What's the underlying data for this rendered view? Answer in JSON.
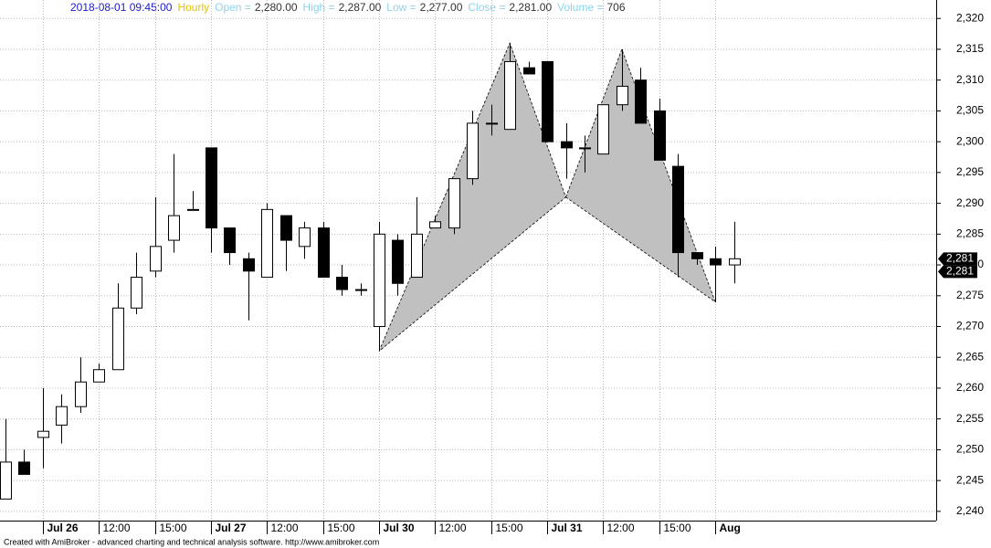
{
  "header": {
    "datetime": "2018-08-01 09:45:00",
    "interval": "Hourly",
    "fields": [
      {
        "label": "Open =",
        "value": "2,280.00"
      },
      {
        "label": "High =",
        "value": "2,287.00"
      },
      {
        "label": "Low =",
        "value": "2,277.00"
      },
      {
        "label": "Close =",
        "value": "2,281.00"
      },
      {
        "label": "Volume =",
        "value": "706"
      }
    ]
  },
  "chart_data": {
    "type": "candlestick",
    "categories": [
      null,
      null,
      "Jul 26",
      null,
      null,
      "12:00",
      null,
      null,
      "15:00",
      null,
      null,
      "Jul 27",
      null,
      null,
      "12:00",
      null,
      null,
      "15:00",
      null,
      null,
      "Jul 30",
      null,
      null,
      "12:00",
      null,
      null,
      "15:00",
      null,
      null,
      "Jul 31",
      null,
      null,
      "12:00",
      null,
      null,
      "15:00",
      null,
      null,
      "Aug",
      null
    ],
    "open": [
      2242,
      2248,
      2252,
      2254,
      2257,
      2261,
      2263,
      2273,
      2279,
      2284,
      2289,
      2299,
      2286,
      2281,
      2278,
      2288,
      2283,
      2286,
      2278,
      2276,
      2270,
      2284,
      2278,
      2286,
      2286,
      2294,
      2303,
      2302,
      2312,
      2313,
      2300,
      2299,
      2298,
      2306,
      2310,
      2305,
      2296,
      2282,
      2281,
      2280
    ],
    "high": [
      2255,
      2250,
      2260,
      2259,
      2265,
      2264,
      2277,
      2282,
      2291,
      2298,
      2292,
      2299,
      2286,
      2282,
      2290,
      2288,
      2287,
      2287,
      2280,
      2277,
      2287,
      2285,
      2291,
      2288,
      2294,
      2305,
      2306,
      2316,
      2313,
      2313,
      2303,
      2301,
      2306,
      2315,
      2312,
      2307,
      2298,
      2282,
      2283,
      2287
    ],
    "low": [
      2242,
      2246,
      2247,
      2251,
      2256,
      2261,
      2263,
      2272,
      2278,
      2282,
      2289,
      2282,
      2280,
      2271,
      2278,
      2279,
      2281,
      2278,
      2275,
      2275,
      2266,
      2275,
      2278,
      2286,
      2285,
      2293,
      2301,
      2302,
      2311,
      2300,
      2294,
      2295,
      2298,
      2305,
      2303,
      2297,
      2278,
      2280,
      2274,
      2277
    ],
    "close": [
      2248,
      2246,
      2253,
      2257,
      2261,
      2263,
      2273,
      2278,
      2283,
      2288,
      2289,
      2286,
      2282,
      2279,
      2289,
      2284,
      2286,
      2278,
      2276,
      2276,
      2285,
      2277,
      2285,
      2287,
      2294,
      2303,
      2303,
      2313,
      2311,
      2300,
      2299,
      2299,
      2306,
      2309,
      2303,
      2297,
      2282,
      2281,
      2280,
      2281
    ],
    "pattern": {
      "x": [
        20,
        27,
        30,
        33,
        38
      ],
      "values": [
        2266,
        2316,
        2291,
        2315,
        2274
      ]
    },
    "ylim": [
      2238.5,
      2323
    ],
    "yticks": [
      {
        "value": 2240,
        "label": "2,240"
      },
      {
        "value": 2245,
        "label": "2,245"
      },
      {
        "value": 2250,
        "label": "2,250"
      },
      {
        "value": 2255,
        "label": "2,255"
      },
      {
        "value": 2260,
        "label": "2,260"
      },
      {
        "value": 2265,
        "label": "2,265"
      },
      {
        "value": 2270,
        "label": "2,270"
      },
      {
        "value": 2275,
        "label": "2,275"
      },
      {
        "value": 2280,
        "label": "2,280"
      },
      {
        "value": 2285,
        "label": "2,285"
      },
      {
        "value": 2290,
        "label": "2,290"
      },
      {
        "value": 2295,
        "label": "2,295"
      },
      {
        "value": 2300,
        "label": "2,300"
      },
      {
        "value": 2305,
        "label": "2,305"
      },
      {
        "value": 2310,
        "label": "2,310"
      },
      {
        "value": 2315,
        "label": "2,315"
      },
      {
        "value": 2320,
        "label": "2,320"
      }
    ],
    "price_markers": [
      {
        "value": 2281,
        "label": "2,281"
      },
      {
        "value": 2281,
        "label": "2,281"
      }
    ],
    "grid": true
  },
  "footer": "Created with AmiBroker - advanced charting and technical analysis software. http://www.amibroker.com"
}
